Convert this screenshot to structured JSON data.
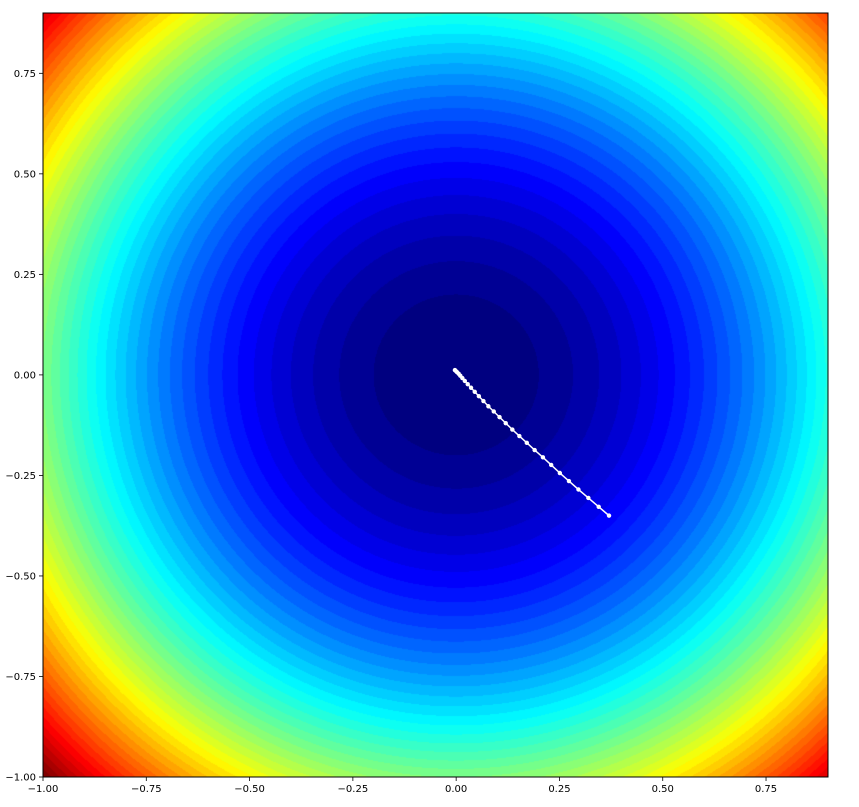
{
  "chart_data": {
    "type": "contourf",
    "title": "",
    "xlabel": "",
    "ylabel": "",
    "xlim": [
      -1.0,
      0.9
    ],
    "ylim": [
      -1.0,
      0.9
    ],
    "x_ticks": [
      -1.0,
      -0.75,
      -0.5,
      -0.25,
      0.0,
      0.25,
      0.5,
      0.75
    ],
    "x_tick_labels": [
      "−1.00",
      "−0.75",
      "−0.50",
      "−0.25",
      "0.00",
      "0.25",
      "0.50",
      "0.75"
    ],
    "y_ticks": [
      -1.0,
      -0.75,
      -0.5,
      -0.25,
      0.0,
      0.25,
      0.5,
      0.75
    ],
    "y_tick_labels": [
      "−1.00",
      "−0.75",
      "−0.50",
      "−0.25",
      "0.00",
      "0.25",
      "0.50",
      "0.75"
    ],
    "surface": {
      "function": "x^2 + y^2",
      "min": 0.0,
      "max": 2.0,
      "levels": 50,
      "colormap": "jet"
    },
    "path": {
      "color": "#ffffff",
      "x": [
        0.37,
        0.345,
        0.32,
        0.296,
        0.273,
        0.251,
        0.23,
        0.21,
        0.19,
        0.171,
        0.153,
        0.136,
        0.12,
        0.105,
        0.091,
        0.078,
        0.066,
        0.055,
        0.045,
        0.036,
        0.028,
        0.021,
        0.015,
        0.01,
        0.006,
        0.002,
        -0.001,
        -0.003
      ],
      "y": [
        -0.35,
        -0.328,
        -0.306,
        -0.285,
        -0.264,
        -0.244,
        -0.224,
        -0.205,
        -0.187,
        -0.169,
        -0.152,
        -0.136,
        -0.12,
        -0.105,
        -0.091,
        -0.078,
        -0.065,
        -0.053,
        -0.042,
        -0.032,
        -0.023,
        -0.015,
        -0.008,
        -0.002,
        0.003,
        0.007,
        0.01,
        0.012
      ]
    }
  }
}
